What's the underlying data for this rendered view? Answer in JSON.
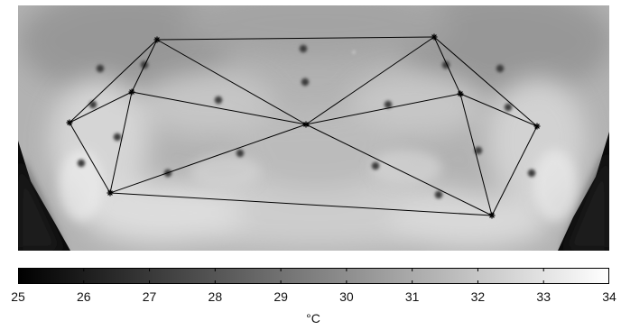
{
  "colorbar": {
    "min": 25,
    "max": 34,
    "ticks": [
      "25",
      "26",
      "27",
      "28",
      "29",
      "30",
      "31",
      "32",
      "33",
      "34"
    ],
    "unit": "°C",
    "colormap": "grayscale",
    "color_low": "#000000",
    "color_high": "#ffffff"
  },
  "image": {
    "type": "thermal-grayscale",
    "background_color": "#b4b4b4",
    "edge_color": "#0a0a0a",
    "marker_count": 19,
    "star_node_count": 10,
    "line_color": "#000000"
  }
}
